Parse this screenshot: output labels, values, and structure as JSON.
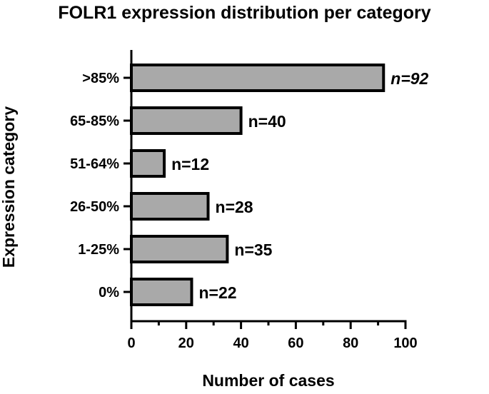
{
  "chart_data": {
    "type": "bar",
    "orientation": "horizontal",
    "title": "FOLR1 expression distribution per category",
    "xlabel": "Number of cases",
    "ylabel": "Expression category",
    "categories": [
      ">85%",
      "65-85%",
      "51-64%",
      "26-50%",
      "1-25%",
      "0%"
    ],
    "values": [
      92,
      40,
      12,
      28,
      35,
      22
    ],
    "data_labels": [
      "n=92",
      "n=40",
      "n=12",
      "n=28",
      "n=35",
      "n=22"
    ],
    "xlim": [
      0,
      100
    ],
    "xticks": [
      0,
      20,
      40,
      60,
      80,
      100
    ],
    "grid": false,
    "bar_color": "#a9a9a9",
    "bar_edge_color": "#000000"
  }
}
